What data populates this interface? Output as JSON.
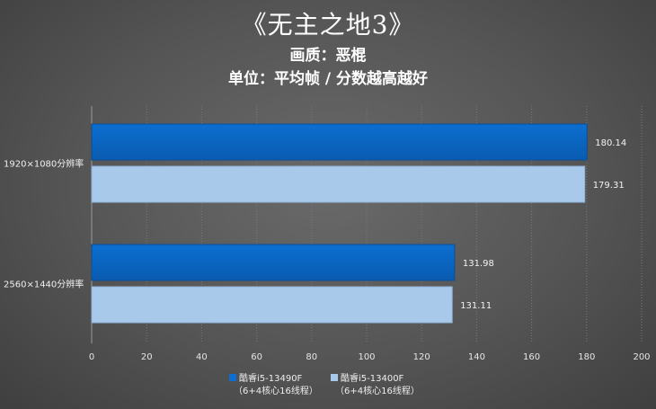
{
  "title": "《无主之地3》",
  "subtitle1": "画质：恶棍",
  "subtitle2": "单位：平均帧 / 分数越高越好",
  "colors": {
    "series1": "#0b6fd0",
    "series1_dark": "#0a5bb0",
    "series2": "#a9c9ea",
    "grid": "#7a7a7a",
    "text": "#ffffff"
  },
  "legend": [
    {
      "name": "酷睿i5-13490F",
      "sub": "（6+4核心16线程）"
    },
    {
      "name": "酷睿i5-13400F",
      "sub": "（6+4核心16线程）"
    }
  ],
  "chart_data": {
    "type": "bar",
    "orientation": "horizontal",
    "categories": [
      "1920×1080分辨率",
      "2560×1440分辨率"
    ],
    "series": [
      {
        "name": "酷睿i5-13490F（6+4核心16线程）",
        "values": [
          180.14,
          131.98
        ]
      },
      {
        "name": "酷睿i5-13400F（6+4核心16线程）",
        "values": [
          179.31,
          131.11
        ]
      }
    ],
    "xlim": [
      0,
      200
    ],
    "xticks": [
      0,
      20,
      40,
      60,
      80,
      100,
      120,
      140,
      160,
      180,
      200
    ],
    "data_labels": [
      [
        "180.14",
        "131.98"
      ],
      [
        "179.31",
        "131.11"
      ]
    ],
    "grid": true,
    "legend_position": "bottom"
  }
}
